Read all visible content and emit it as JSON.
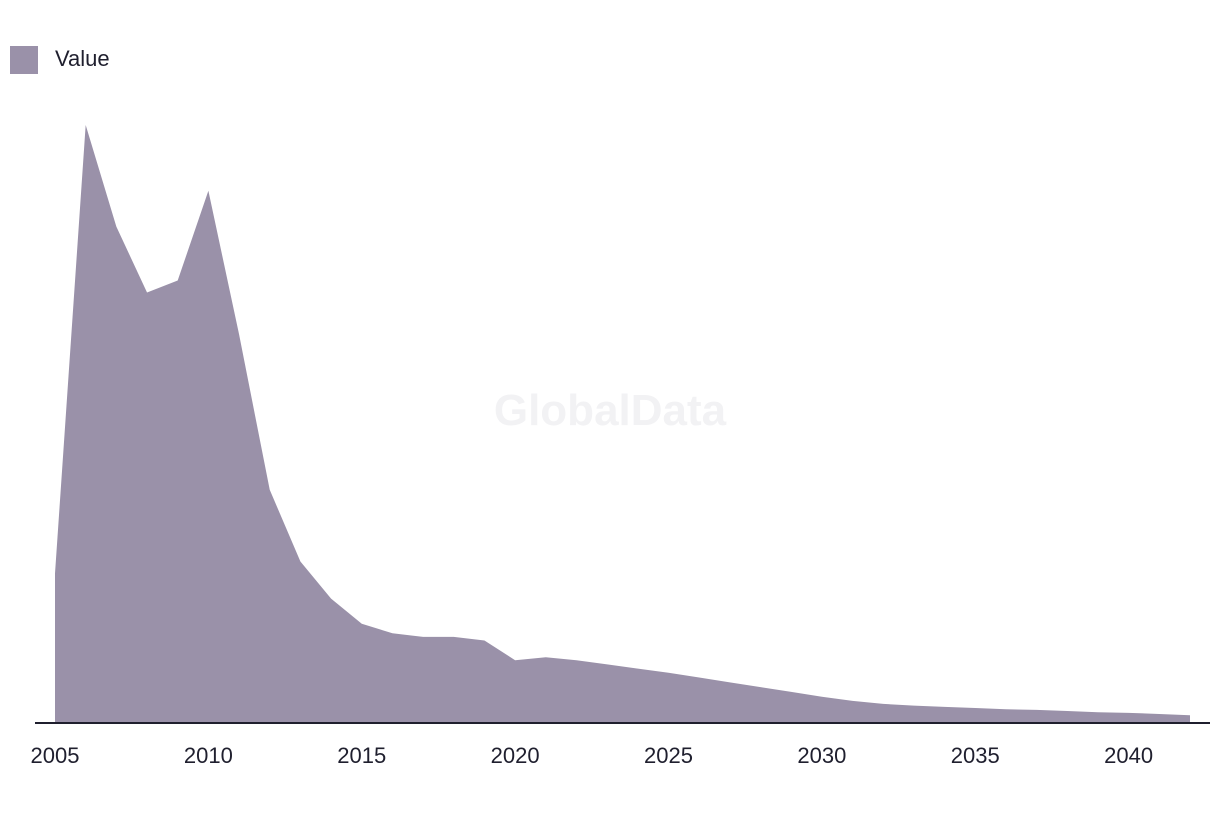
{
  "watermark": "GlobalData",
  "chart_data": {
    "type": "area",
    "title": "",
    "xlabel": "",
    "ylabel": "",
    "legend": {
      "position": "top-left",
      "entries": [
        "Value"
      ]
    },
    "grid": false,
    "x_ticks": [
      "2005",
      "2010",
      "2015",
      "2020",
      "2025",
      "2030",
      "2035",
      "2040"
    ],
    "xlim": [
      2005,
      2042
    ],
    "ylim": [
      0,
      100
    ],
    "colors": {
      "series": "#9a91a9",
      "axis": "#1f1f2e",
      "text": "#1f1f2e"
    },
    "x": [
      2005,
      2006,
      2007,
      2008,
      2009,
      2010,
      2011,
      2012,
      2013,
      2014,
      2015,
      2016,
      2017,
      2018,
      2019,
      2020,
      2021,
      2022,
      2023,
      2024,
      2025,
      2026,
      2027,
      2028,
      2029,
      2030,
      2031,
      2032,
      2033,
      2034,
      2035,
      2036,
      2037,
      2038,
      2039,
      2040,
      2041,
      2042
    ],
    "series": [
      {
        "name": "Value",
        "values": [
          25,
          100,
          83,
          72,
          74,
          89,
          65,
          39,
          27,
          20.8,
          16.6,
          15,
          14.4,
          14.4,
          13.8,
          10.5,
          11,
          10.5,
          9.8,
          9.1,
          8.4,
          7.6,
          6.8,
          6,
          5.2,
          4.4,
          3.7,
          3.2,
          2.9,
          2.7,
          2.5,
          2.3,
          2.2,
          2.0,
          1.8,
          1.7,
          1.5,
          1.3
        ]
      }
    ]
  }
}
